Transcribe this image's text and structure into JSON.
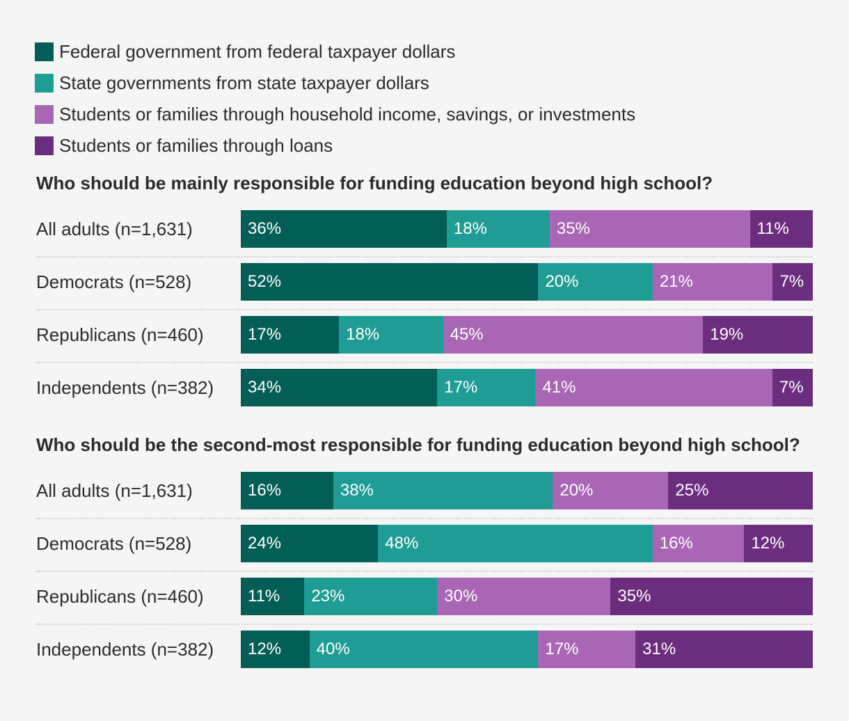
{
  "legend": [
    {
      "label": "Federal government from federal taxpayer dollars",
      "color": "#035e57"
    },
    {
      "label": "State governments from state taxpayer dollars",
      "color": "#1f9c94"
    },
    {
      "label": "Students or families through household income, savings, or investments",
      "color": "#a866b5"
    },
    {
      "label": "Students or families through loans",
      "color": "#6b2d7e"
    }
  ],
  "chart_data": [
    {
      "type": "stacked-bar",
      "title": "Who should be mainly responsible for funding education beyond high school?",
      "categories": [
        "All adults (n=1,631)",
        "Democrats (n=528)",
        "Republicans (n=460)",
        "Independents (n=382)"
      ],
      "series": [
        {
          "name": "Federal government from federal taxpayer dollars",
          "values": [
            36,
            52,
            17,
            34
          ],
          "labels": [
            "36%",
            "52%",
            "17%",
            "34%"
          ]
        },
        {
          "name": "State governments from state taxpayer dollars",
          "values": [
            18,
            20,
            18,
            17
          ],
          "labels": [
            "18%",
            "20%",
            "18%",
            "17%"
          ]
        },
        {
          "name": "Students or families through household income, savings, or investments",
          "values": [
            35,
            21,
            45,
            41
          ],
          "labels": [
            "35%",
            "21%",
            "45%",
            "41%"
          ]
        },
        {
          "name": "Students or families through loans",
          "values": [
            11,
            7,
            19,
            7
          ],
          "labels": [
            "11%",
            "7%",
            "19%",
            "7%"
          ]
        }
      ]
    },
    {
      "type": "stacked-bar",
      "title": "Who should be the second-most responsible for funding education beyond high school?",
      "categories": [
        "All adults (n=1,631)",
        "Democrats (n=528)",
        "Republicans (n=460)",
        "Independents (n=382)"
      ],
      "series": [
        {
          "name": "Federal government from federal taxpayer dollars",
          "values": [
            16,
            24,
            11,
            12
          ],
          "labels": [
            "16%",
            "24%",
            "11%",
            "12%"
          ]
        },
        {
          "name": "State governments from state taxpayer dollars",
          "values": [
            38,
            48,
            23,
            40
          ],
          "labels": [
            "38%",
            "48%",
            "23%",
            "40%"
          ]
        },
        {
          "name": "Students or families through household income, savings, or investments",
          "values": [
            20,
            16,
            30,
            17
          ],
          "labels": [
            "20%",
            "16%",
            "30%",
            "17%"
          ]
        },
        {
          "name": "Students or families through loans",
          "values": [
            25,
            12,
            35,
            31
          ],
          "labels": [
            "25%",
            "12%",
            "35%",
            "31%"
          ]
        }
      ]
    }
  ]
}
